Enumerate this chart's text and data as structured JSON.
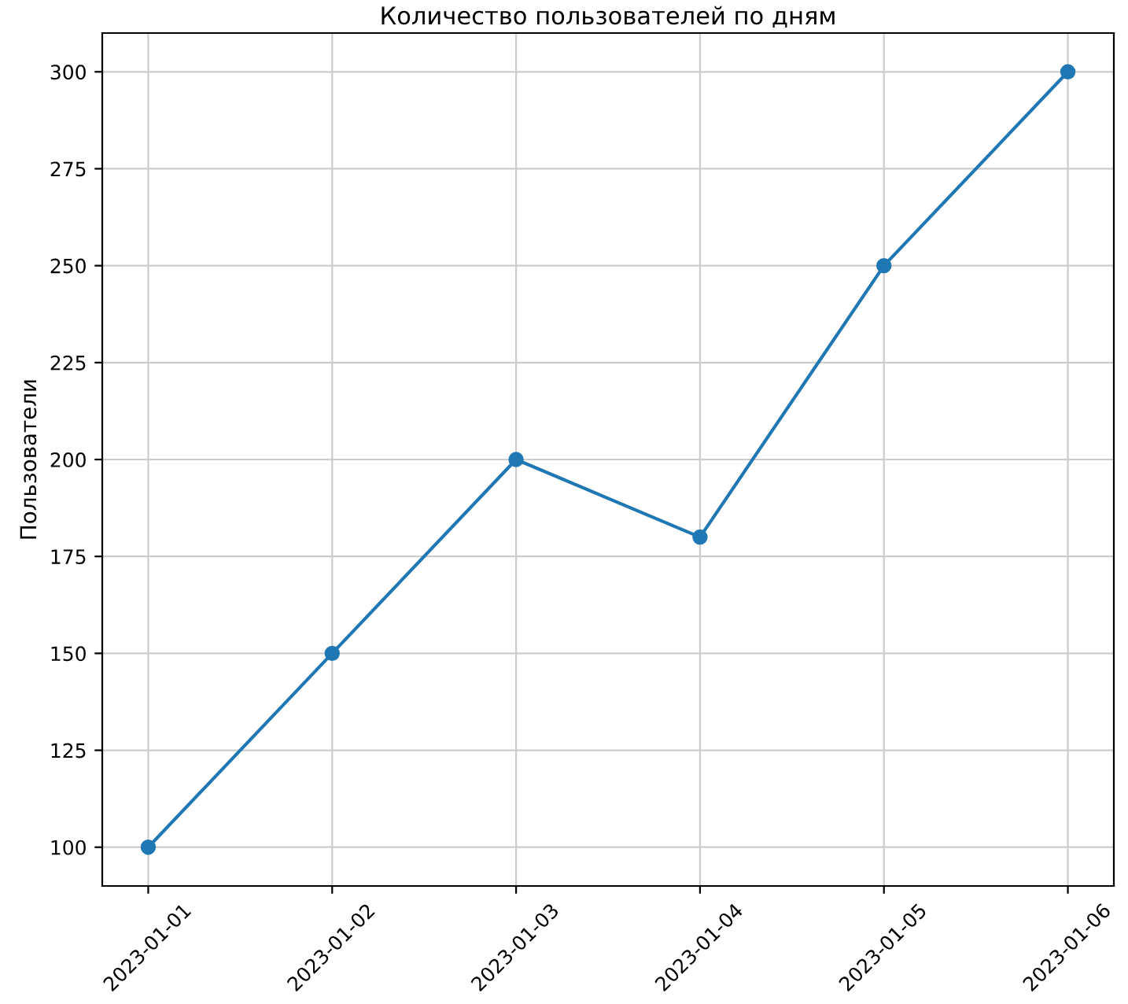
{
  "chart_data": {
    "type": "line",
    "title": "Количество пользователей по дням",
    "ylabel": "Пользователи",
    "categories": [
      "2023-01-01",
      "2023-01-02",
      "2023-01-03",
      "2023-01-04",
      "2023-01-05",
      "2023-01-06"
    ],
    "series": [
      {
        "color": "#1f77b4",
        "values": [
          100,
          150,
          200,
          180,
          250,
          300
        ]
      }
    ],
    "ylim": [
      90,
      310
    ],
    "yticks": [
      100,
      125,
      150,
      175,
      200,
      225,
      250,
      275,
      300
    ],
    "grid": true,
    "marker": "circle",
    "line_style": "solid"
  }
}
